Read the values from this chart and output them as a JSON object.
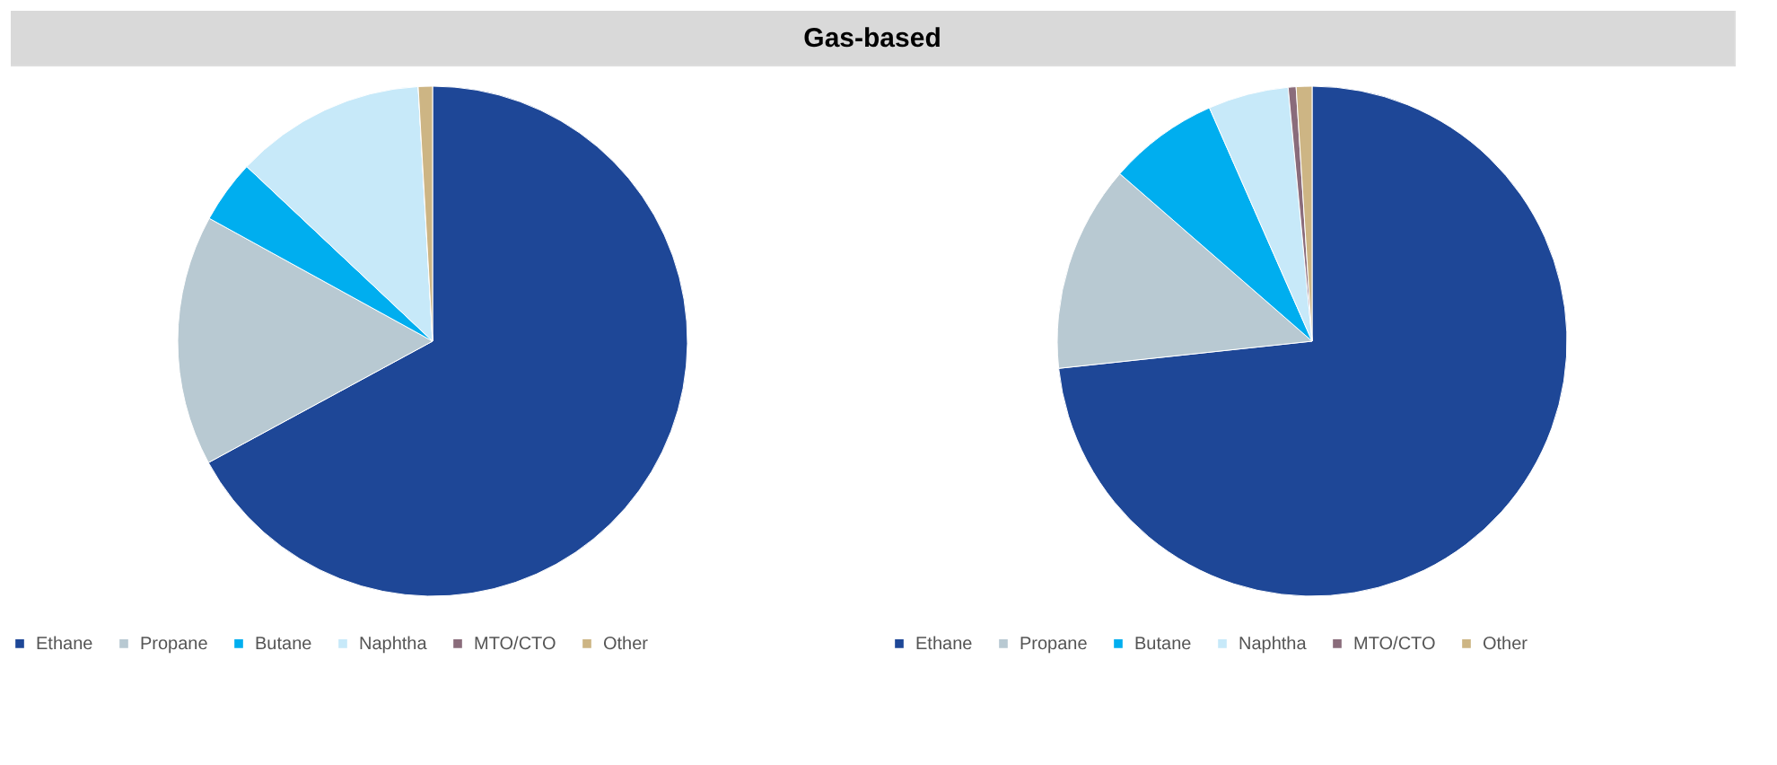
{
  "chart_data": [
    {
      "type": "pie",
      "title": "Gas-based",
      "categories": [
        "Ethane",
        "Propane",
        "Butane",
        "Naphtha",
        "MTO/CTO",
        "Other"
      ],
      "values": [
        67.1,
        15.9,
        4.0,
        12.1,
        0,
        0.9
      ],
      "colors": [
        "#1e4797",
        "#b8c9d2",
        "#00aeef",
        "#c7e9f9",
        "#8a6c7b",
        "#cdb584"
      ],
      "legend": "bottom"
    },
    {
      "type": "pie",
      "categories": [
        "Ethane",
        "Propane",
        "Butane",
        "Naphtha",
        "MTO/CTO",
        "Other"
      ],
      "values": [
        73.3,
        13.1,
        7.0,
        5.1,
        0.5,
        1.0
      ],
      "colors": [
        "#1e4797",
        "#b8c9d2",
        "#00aeef",
        "#c7e9f9",
        "#8a6c7b",
        "#cdb584"
      ],
      "legend": "bottom"
    }
  ]
}
